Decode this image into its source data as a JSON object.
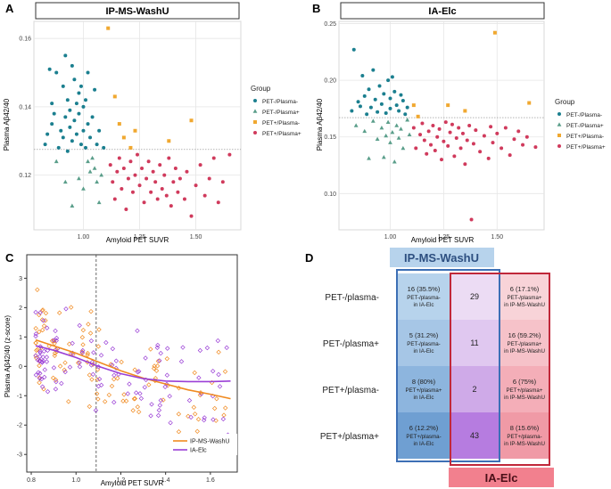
{
  "colors": {
    "teal": "#1b7f8f",
    "green": "#5a9e8a",
    "orange": "#f0a830",
    "red": "#d03a5c",
    "orange_line": "#f08a20",
    "purple_line": "#9a3fd6",
    "blue_header": "#b7d3ec",
    "blue_border": "#3d6fb5",
    "red_border": "#c0283a",
    "red_header": "#f2808e",
    "grid": "#e6e6e6"
  },
  "chart_data": [
    {
      "panel": "A",
      "type": "scatter",
      "title": "IP-MS-WashU",
      "xlabel": "Amyloid PET SUVR",
      "ylabel": "Plasma Aβ42/40",
      "xlim": [
        0.78,
        1.7
      ],
      "ylim": [
        0.104,
        0.165
      ],
      "xticks": [
        1.0,
        1.25,
        1.5
      ],
      "xtick_labels": [
        "1.00",
        "1.25",
        "1.50"
      ],
      "yticks": [
        0.12,
        0.14,
        0.16
      ],
      "ytick_labels": [
        "0.12",
        "0.14",
        "0.16"
      ],
      "hline": 0.1275,
      "legend_title": "Group",
      "legend": [
        "PET-/Plasma-",
        "PET-/Plasma+",
        "PET+/Plasma-",
        "PET+/Plasma+"
      ],
      "series": [
        {
          "name": "PET-/Plasma-",
          "marker": "circle",
          "points": [
            [
              0.83,
              0.129
            ],
            [
              0.84,
              0.132
            ],
            [
              0.85,
              0.151
            ],
            [
              0.86,
              0.141
            ],
            [
              0.86,
              0.135
            ],
            [
              0.87,
              0.138
            ],
            [
              0.88,
              0.15
            ],
            [
              0.89,
              0.128
            ],
            [
              0.9,
              0.133
            ],
            [
              0.91,
              0.146
            ],
            [
              0.91,
              0.131
            ],
            [
              0.92,
              0.155
            ],
            [
              0.92,
              0.137
            ],
            [
              0.93,
              0.142
            ],
            [
              0.93,
              0.127
            ],
            [
              0.94,
              0.139
            ],
            [
              0.94,
              0.134
            ],
            [
              0.95,
              0.152
            ],
            [
              0.95,
              0.13
            ],
            [
              0.96,
              0.148
            ],
            [
              0.96,
              0.136
            ],
            [
              0.97,
              0.141
            ],
            [
              0.97,
              0.132
            ],
            [
              0.98,
              0.144
            ],
            [
              0.98,
              0.138
            ],
            [
              0.99,
              0.129
            ],
            [
              0.99,
              0.146
            ],
            [
              1.0,
              0.14
            ],
            [
              1.0,
              0.133
            ],
            [
              1.01,
              0.128
            ],
            [
              1.01,
              0.142
            ],
            [
              1.02,
              0.135
            ],
            [
              1.02,
              0.15
            ],
            [
              1.03,
              0.131
            ],
            [
              1.04,
              0.137
            ],
            [
              1.05,
              0.145
            ],
            [
              1.06,
              0.129
            ],
            [
              1.07,
              0.133
            ],
            [
              1.09,
              0.128
            ]
          ]
        },
        {
          "name": "PET-/Plasma+",
          "marker": "triangle",
          "points": [
            [
              0.88,
              0.124
            ],
            [
              0.92,
              0.118
            ],
            [
              0.95,
              0.111
            ],
            [
              0.98,
              0.119
            ],
            [
              1.0,
              0.116
            ],
            [
              1.02,
              0.124
            ],
            [
              1.03,
              0.121
            ],
            [
              1.04,
              0.125
            ],
            [
              1.05,
              0.122
            ],
            [
              1.06,
              0.118
            ],
            [
              1.07,
              0.112
            ],
            [
              1.08,
              0.12
            ]
          ]
        },
        {
          "name": "PET+/Plasma-",
          "marker": "square",
          "points": [
            [
              1.11,
              0.163
            ],
            [
              1.14,
              0.143
            ],
            [
              1.16,
              0.135
            ],
            [
              1.18,
              0.131
            ],
            [
              1.21,
              0.128
            ],
            [
              1.23,
              0.133
            ],
            [
              1.38,
              0.13
            ],
            [
              1.48,
              0.136
            ]
          ]
        },
        {
          "name": "PET+/Plasma+",
          "marker": "circle",
          "points": [
            [
              1.12,
              0.123
            ],
            [
              1.13,
              0.118
            ],
            [
              1.14,
              0.113
            ],
            [
              1.15,
              0.121
            ],
            [
              1.16,
              0.125
            ],
            [
              1.17,
              0.116
            ],
            [
              1.18,
              0.122
            ],
            [
              1.19,
              0.11
            ],
            [
              1.2,
              0.119
            ],
            [
              1.21,
              0.124
            ],
            [
              1.22,
              0.115
            ],
            [
              1.23,
              0.12
            ],
            [
              1.24,
              0.126
            ],
            [
              1.25,
              0.117
            ],
            [
              1.26,
              0.122
            ],
            [
              1.27,
              0.112
            ],
            [
              1.28,
              0.119
            ],
            [
              1.29,
              0.124
            ],
            [
              1.3,
              0.115
            ],
            [
              1.31,
              0.121
            ],
            [
              1.32,
              0.118
            ],
            [
              1.33,
              0.113
            ],
            [
              1.34,
              0.123
            ],
            [
              1.35,
              0.116
            ],
            [
              1.36,
              0.12
            ],
            [
              1.37,
              0.114
            ],
            [
              1.38,
              0.125
            ],
            [
              1.39,
              0.111
            ],
            [
              1.4,
              0.118
            ],
            [
              1.41,
              0.122
            ],
            [
              1.42,
              0.115
            ],
            [
              1.43,
              0.119
            ],
            [
              1.45,
              0.113
            ],
            [
              1.46,
              0.121
            ],
            [
              1.48,
              0.108
            ],
            [
              1.5,
              0.117
            ],
            [
              1.52,
              0.123
            ],
            [
              1.54,
              0.114
            ],
            [
              1.56,
              0.119
            ],
            [
              1.58,
              0.125
            ],
            [
              1.6,
              0.112
            ],
            [
              1.62,
              0.118
            ],
            [
              1.65,
              0.126
            ]
          ]
        }
      ]
    },
    {
      "panel": "B",
      "type": "scatter",
      "title": "IA-Elc",
      "xlabel": "Amyloid PET SUVR",
      "ylabel": "Plasma Aβ42/40",
      "xlim": [
        0.76,
        1.72
      ],
      "ylim": [
        0.068,
        0.252
      ],
      "xticks": [
        1.0,
        1.25,
        1.5
      ],
      "xtick_labels": [
        "1.00",
        "1.25",
        "1.50"
      ],
      "yticks": [
        0.1,
        0.15,
        0.2,
        0.25
      ],
      "ytick_labels": [
        "0.10",
        "0.15",
        "0.20",
        "0.25"
      ],
      "hline": 0.167,
      "legend_title": "Group",
      "legend": [
        "PET-/Plasma-",
        "PET-/Plasma+",
        "PET+/Plasma-",
        "PET+/Plasma+"
      ],
      "series": [
        {
          "name": "PET-/Plasma-",
          "marker": "circle",
          "points": [
            [
              0.82,
              0.173
            ],
            [
              0.83,
              0.227
            ],
            [
              0.85,
              0.181
            ],
            [
              0.86,
              0.177
            ],
            [
              0.87,
              0.204
            ],
            [
              0.88,
              0.186
            ],
            [
              0.89,
              0.17
            ],
            [
              0.9,
              0.192
            ],
            [
              0.91,
              0.176
            ],
            [
              0.92,
              0.209
            ],
            [
              0.93,
              0.183
            ],
            [
              0.94,
              0.172
            ],
            [
              0.95,
              0.195
            ],
            [
              0.96,
              0.179
            ],
            [
              0.97,
              0.188
            ],
            [
              0.98,
              0.171
            ],
            [
              0.99,
              0.2
            ],
            [
              1.0,
              0.184
            ],
            [
              1.0,
              0.175
            ],
            [
              1.01,
              0.203
            ],
            [
              1.02,
              0.19
            ],
            [
              1.03,
              0.178
            ],
            [
              1.04,
              0.173
            ],
            [
              1.05,
              0.187
            ],
            [
              1.06,
              0.182
            ],
            [
              1.07,
              0.17
            ],
            [
              1.08,
              0.176
            ]
          ]
        },
        {
          "name": "PET-/Plasma+",
          "marker": "triangle",
          "points": [
            [
              0.84,
              0.16
            ],
            [
              0.88,
              0.155
            ],
            [
              0.9,
              0.131
            ],
            [
              0.92,
              0.164
            ],
            [
              0.94,
              0.148
            ],
            [
              0.96,
              0.158
            ],
            [
              0.97,
              0.132
            ],
            [
              0.98,
              0.151
            ],
            [
              0.99,
              0.163
            ],
            [
              1.0,
              0.145
            ],
            [
              1.01,
              0.154
            ],
            [
              1.02,
              0.128
            ],
            [
              1.03,
              0.16
            ],
            [
              1.04,
              0.149
            ],
            [
              1.05,
              0.157
            ],
            [
              1.06,
              0.14
            ],
            [
              1.08,
              0.165
            ],
            [
              1.09,
              0.152
            ]
          ]
        },
        {
          "name": "PET+/Plasma-",
          "marker": "square",
          "points": [
            [
              1.11,
              0.178
            ],
            [
              1.13,
              0.168
            ],
            [
              1.27,
              0.178
            ],
            [
              1.35,
              0.173
            ],
            [
              1.49,
              0.242
            ],
            [
              1.65,
              0.18
            ]
          ]
        },
        {
          "name": "PET+/Plasma+",
          "marker": "circle",
          "points": [
            [
              1.11,
              0.158
            ],
            [
              1.12,
              0.14
            ],
            [
              1.14,
              0.152
            ],
            [
              1.15,
              0.162
            ],
            [
              1.16,
              0.147
            ],
            [
              1.17,
              0.135
            ],
            [
              1.18,
              0.155
            ],
            [
              1.19,
              0.143
            ],
            [
              1.2,
              0.16
            ],
            [
              1.21,
              0.138
            ],
            [
              1.22,
              0.15
            ],
            [
              1.23,
              0.157
            ],
            [
              1.24,
              0.13
            ],
            [
              1.25,
              0.146
            ],
            [
              1.26,
              0.163
            ],
            [
              1.27,
              0.142
            ],
            [
              1.28,
              0.154
            ],
            [
              1.29,
              0.161
            ],
            [
              1.3,
              0.133
            ],
            [
              1.31,
              0.149
            ],
            [
              1.32,
              0.158
            ],
            [
              1.33,
              0.14
            ],
            [
              1.34,
              0.153
            ],
            [
              1.35,
              0.126
            ],
            [
              1.36,
              0.147
            ],
            [
              1.37,
              0.16
            ],
            [
              1.38,
              0.077
            ],
            [
              1.39,
              0.144
            ],
            [
              1.4,
              0.156
            ],
            [
              1.42,
              0.137
            ],
            [
              1.44,
              0.151
            ],
            [
              1.46,
              0.131
            ],
            [
              1.47,
              0.159
            ],
            [
              1.48,
              0.145
            ],
            [
              1.5,
              0.153
            ],
            [
              1.52,
              0.14
            ],
            [
              1.54,
              0.158
            ],
            [
              1.56,
              0.134
            ],
            [
              1.58,
              0.148
            ],
            [
              1.6,
              0.155
            ],
            [
              1.62,
              0.143
            ],
            [
              1.64,
              0.15
            ],
            [
              1.68,
              0.141
            ]
          ]
        }
      ]
    },
    {
      "panel": "C",
      "type": "scatter",
      "xlabel": "Amyloid PET SUVR",
      "ylabel": "Plasma Aβ42/40 (z-score)",
      "xlim": [
        0.78,
        1.72
      ],
      "ylim": [
        -3.6,
        3.8
      ],
      "xticks": [
        0.8,
        1.0,
        1.2,
        1.4,
        1.6
      ],
      "xtick_labels": [
        "0.8",
        "1.0",
        "1.2",
        "1.4",
        "1.6"
      ],
      "yticks": [
        -3,
        -2,
        -1,
        0,
        1,
        2,
        3
      ],
      "ytick_labels": [
        "-3",
        "-2",
        "-1",
        "0",
        "1",
        "2",
        "3"
      ],
      "vline": 1.09,
      "legend": [
        "IP-MS-WashU",
        "IA-Elc"
      ],
      "fit_lines": [
        {
          "name": "IP-MS-WashU",
          "x": [
            0.82,
            0.9,
            1.0,
            1.1,
            1.2,
            1.3,
            1.4,
            1.5,
            1.6,
            1.69
          ],
          "y": [
            0.9,
            0.7,
            0.45,
            0.15,
            -0.15,
            -0.4,
            -0.6,
            -0.8,
            -0.95,
            -1.1
          ]
        },
        {
          "name": "IA-Elc",
          "x": [
            0.82,
            0.9,
            1.0,
            1.1,
            1.2,
            1.3,
            1.4,
            1.5,
            1.6,
            1.69
          ],
          "y": [
            0.7,
            0.55,
            0.3,
            0.0,
            -0.25,
            -0.42,
            -0.5,
            -0.52,
            -0.52,
            -0.5
          ]
        }
      ]
    }
  ],
  "panel_d": {
    "label": "D",
    "header_left": "IP-MS-WashU",
    "header_right": "IA-Elc",
    "rows": [
      {
        "label": "PET-/plasma-",
        "left_value": "16 (35.5%)",
        "left_sub1": "PET-/plasma-",
        "left_sub2": "in IA-Elc",
        "mid": "29",
        "right_value": "6 (17.1%)",
        "right_sub1": "PET-/plasma+",
        "right_sub2": "in IP-MS-WashU"
      },
      {
        "label": "PET-/plasma+",
        "left_value": "5 (31.2%)",
        "left_sub1": "PET-/plasma-",
        "left_sub2": "in IA-Elc",
        "mid": "11",
        "right_value": "16 (59.2%)",
        "right_sub1": "PET-/plasma+",
        "right_sub2": "in IP-MS-WashU"
      },
      {
        "label": "PET+/plasma-",
        "left_value": "8 (80%)",
        "left_sub1": "PET+/plasma+",
        "left_sub2": "in IA-Elc",
        "mid": "2",
        "right_value": "6 (75%)",
        "right_sub1": "PET+/plasma+",
        "right_sub2": "in IP-MS-WashU"
      },
      {
        "label": "PET+/plasma+",
        "left_value": "6 (12.2%)",
        "left_sub1": "PET+/plasma-",
        "left_sub2": "in IA-Elc",
        "mid": "43",
        "right_value": "8 (15.6%)",
        "right_sub1": "PET+/plasma-",
        "right_sub2": "in IP-MS-WashU"
      }
    ]
  },
  "panel_labels": [
    "A",
    "B",
    "C"
  ]
}
